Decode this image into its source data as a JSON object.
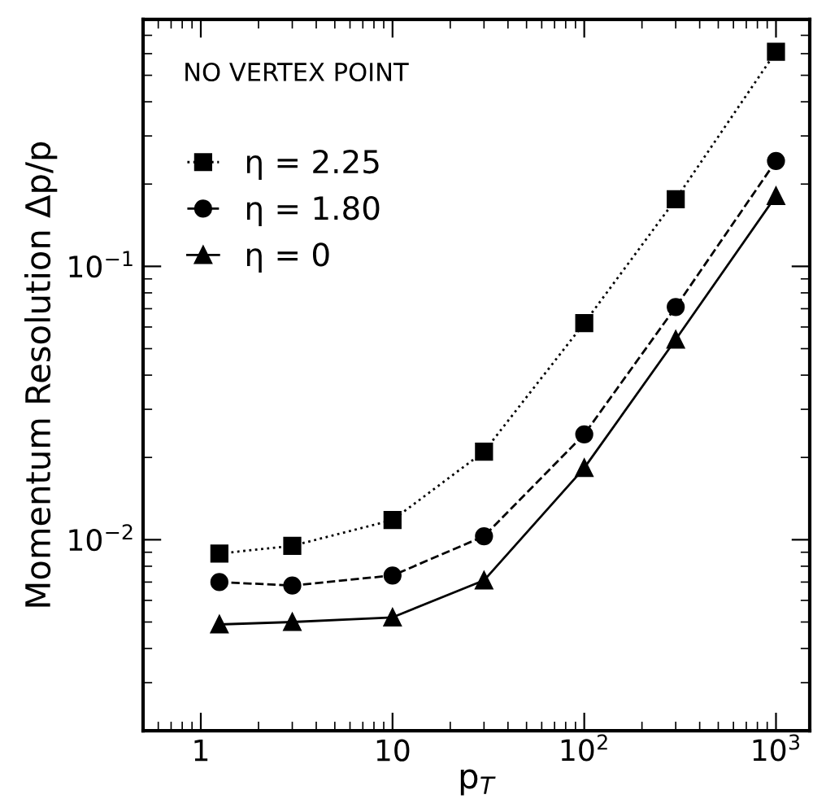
{
  "chart_data": {
    "type": "line",
    "xlabel": "p$_{T}$",
    "ylabel": "Momentum Resolution Δp/p",
    "log": "xy",
    "grid": false,
    "legend": "top left",
    "annotations": [
      "NO VERTEX POINT"
    ],
    "x": [
      1.25,
      3,
      10,
      30,
      100,
      300,
      1000
    ],
    "xlim": [
      0.5,
      1500
    ],
    "ylim": [
      0.002,
      0.8
    ],
    "xticks": [
      1,
      10,
      {
        "value": 100,
        "label": "10$^{2}$"
      },
      {
        "value": 1000,
        "label": "10$^{3}$"
      }
    ],
    "yticks": [
      {
        "value": 0.01,
        "label": "10$^{−2}$"
      },
      {
        "value": 0.1,
        "label": "10$^{−1}$"
      }
    ],
    "series": [
      {
        "name": "η = 2.25",
        "color": "#000000",
        "marker": "square",
        "line_style": "dotted",
        "values": [
          0.0089,
          0.0095,
          0.0118,
          0.021,
          0.062,
          0.176,
          0.61
        ]
      },
      {
        "name": "η = 1.80",
        "color": "#000000",
        "marker": "circle",
        "line_style": "dashed",
        "values": [
          0.007,
          0.0068,
          0.0074,
          0.0103,
          0.0243,
          0.071,
          0.243
        ]
      },
      {
        "name": "η = 0",
        "color": "#000000",
        "marker": "triangle",
        "line_style": "solid",
        "values": [
          0.0049,
          0.005,
          0.0052,
          0.0071,
          0.0183,
          0.054,
          0.181
        ]
      }
    ]
  }
}
